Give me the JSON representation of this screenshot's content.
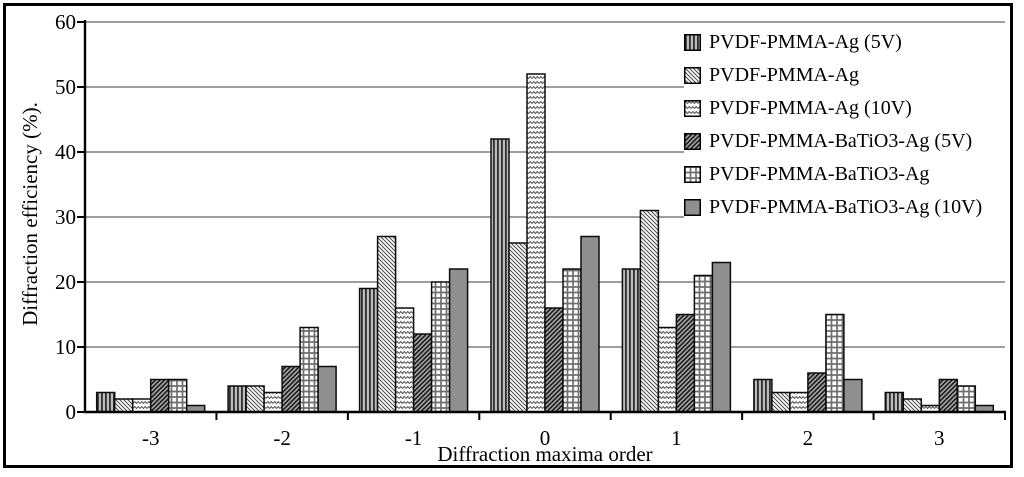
{
  "chart_data": {
    "type": "bar",
    "title": "",
    "xlabel": "Diffraction maxima order",
    "ylabel": "Diffraction efficiency (%).",
    "categories": [
      "-3",
      "-2",
      "-1",
      "0",
      "1",
      "2",
      "3"
    ],
    "yticks": [
      0,
      10,
      20,
      30,
      40,
      50,
      60
    ],
    "ylim": [
      0,
      60
    ],
    "grid": true,
    "legend_position": "top-right",
    "series": [
      {
        "name": "PVDF-PMMA-Ag (5V)",
        "pattern": "vertical-stripes",
        "values": [
          3,
          4,
          19,
          42,
          22,
          5,
          3
        ]
      },
      {
        "name": "PVDF-PMMA-Ag",
        "pattern": "diagonal-thin-backslash",
        "values": [
          2,
          4,
          27,
          26,
          31,
          3,
          2
        ]
      },
      {
        "name": "PVDF-PMMA-Ag (10V)",
        "pattern": "zigzag",
        "values": [
          2,
          3,
          16,
          52,
          13,
          3,
          1
        ]
      },
      {
        "name": "PVDF-PMMA-BaTiO3-Ag (5V)",
        "pattern": "diagonal-dark-slash",
        "values": [
          5,
          7,
          12,
          16,
          15,
          6,
          5
        ]
      },
      {
        "name": "PVDF-PMMA-BaTiO3-Ag",
        "pattern": "grid",
        "values": [
          5,
          13,
          20,
          22,
          21,
          15,
          4
        ]
      },
      {
        "name": "PVDF-PMMA-BaTiO3-Ag (10V)",
        "pattern": "solid-gray",
        "values": [
          1,
          7,
          22,
          27,
          23,
          5,
          1
        ]
      }
    ],
    "colors": {
      "background": "#ffffff",
      "frame": "#000000",
      "axis": "#000000",
      "gridline": "#3d3d3d",
      "bar_outline": "#0d0d0d",
      "solid_gray": "#8f8f8f"
    }
  }
}
